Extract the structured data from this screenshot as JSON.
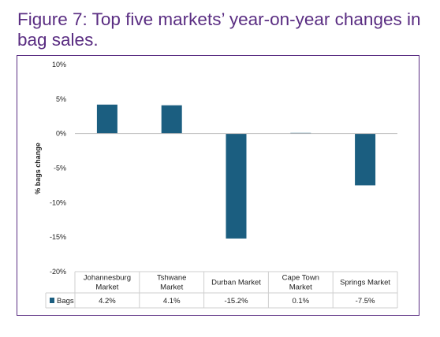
{
  "figure_title_line1": "Figure 7: Top five markets’ year-on-year changes in",
  "figure_title_line2": "bag sales.",
  "chart_data": {
    "type": "bar",
    "title": "Figure 7: Top five markets’ year-on-year changes in bag sales.",
    "ylabel": "% bags change",
    "xlabel": "",
    "categories": [
      [
        "Johannesburg",
        "Market"
      ],
      [
        "Tshwane",
        "Market"
      ],
      [
        "Durban Market"
      ],
      [
        "Cape Town",
        "Market"
      ],
      [
        "Springs Market"
      ]
    ],
    "series": [
      {
        "name": "Bags",
        "values": [
          4.2,
          4.1,
          -15.2,
          0.1,
          -7.5
        ],
        "labels": [
          "4.2%",
          "4.1%",
          "-15.2%",
          "0.1%",
          "-7.5%"
        ],
        "color": "#1b5e80"
      }
    ],
    "ylim": [
      -20,
      10
    ],
    "yticks": [
      10,
      5,
      0,
      -5,
      -10,
      -15,
      -20
    ],
    "ytick_labels": [
      "10%",
      "5%",
      "0%",
      "-5%",
      "-10%",
      "-15%",
      "-20%"
    ],
    "grid": false,
    "legend": "data-table",
    "data_table": true
  }
}
